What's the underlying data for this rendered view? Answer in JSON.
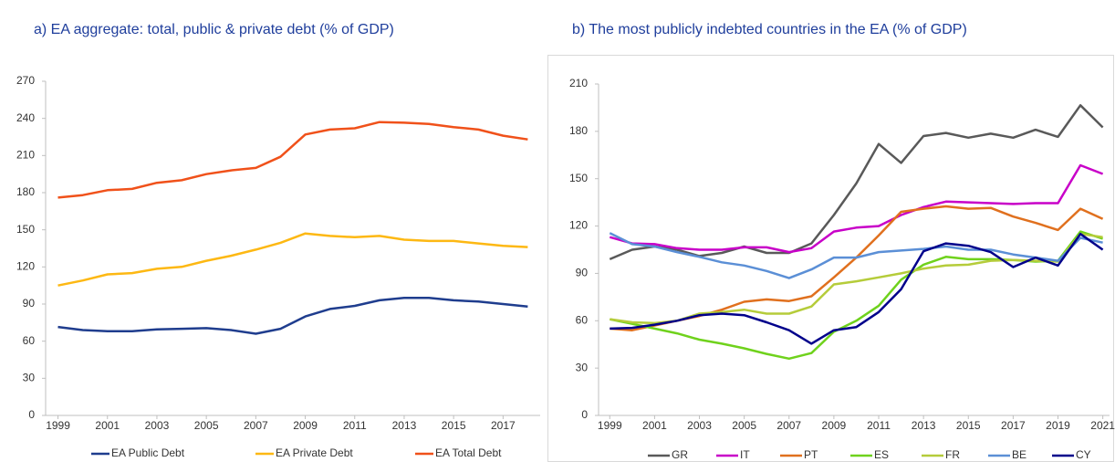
{
  "chart_data": [
    {
      "type": "line",
      "title": "a) EA aggregate: total, public & private debt (% of GDP)",
      "x": [
        1999,
        2000,
        2001,
        2002,
        2003,
        2004,
        2005,
        2006,
        2007,
        2008,
        2009,
        2010,
        2011,
        2012,
        2013,
        2014,
        2015,
        2016,
        2017,
        2018
      ],
      "xlim": [
        1998.5,
        2018.5
      ],
      "xticks": [
        1999,
        2001,
        2003,
        2005,
        2007,
        2009,
        2011,
        2013,
        2015,
        2017
      ],
      "ylim": [
        0,
        270
      ],
      "yticks": [
        0,
        30,
        60,
        90,
        120,
        150,
        180,
        210,
        240,
        270
      ],
      "grid": false,
      "legend": "bottom",
      "series": [
        {
          "name": "EA Public Debt",
          "color": "#1f3d8e",
          "values": [
            71.5,
            69,
            68,
            68,
            69.5,
            70,
            70.5,
            69,
            66,
            70,
            80,
            86,
            88.5,
            93,
            95,
            95,
            93,
            92,
            90,
            88
          ]
        },
        {
          "name": "EA Private Debt",
          "color": "#fdb813",
          "values": [
            105,
            109,
            114,
            115,
            118.5,
            120,
            125,
            129,
            134,
            139.5,
            147,
            145,
            144,
            145,
            142,
            141,
            141,
            139,
            137,
            136
          ]
        },
        {
          "name": "EA Total Debt",
          "color": "#f0511a",
          "values": [
            176,
            178,
            182,
            183,
            188,
            190,
            195,
            198,
            200,
            209,
            227,
            231,
            232,
            237,
            236.5,
            235.5,
            233,
            231,
            226,
            223
          ]
        }
      ]
    },
    {
      "type": "line",
      "title": "b) The most publicly indebted countries in the EA (% of GDP)",
      "x": [
        1999,
        2000,
        2001,
        2002,
        2003,
        2004,
        2005,
        2006,
        2007,
        2008,
        2009,
        2010,
        2011,
        2012,
        2013,
        2014,
        2015,
        2016,
        2017,
        2018,
        2019,
        2020,
        2021
      ],
      "xlim": [
        1998.5,
        2021.3
      ],
      "xticks": [
        1999,
        2001,
        2003,
        2005,
        2007,
        2009,
        2011,
        2013,
        2015,
        2017,
        2019,
        2021
      ],
      "ylim": [
        0,
        210
      ],
      "yticks": [
        0,
        30,
        60,
        90,
        120,
        150,
        180,
        210
      ],
      "grid": false,
      "legend": "bottom",
      "series": [
        {
          "name": "GR",
          "color": "#595959",
          "values": [
            99,
            105,
            107,
            105,
            101,
            103,
            107,
            103,
            103,
            109,
            127,
            147,
            172,
            160,
            177,
            179,
            176,
            178.5,
            176,
            181,
            176.5,
            196.5,
            182.5
          ]
        },
        {
          "name": "IT",
          "color": "#c800c8",
          "values": [
            113,
            109,
            108.5,
            106,
            105,
            105,
            106.5,
            106.5,
            103.5,
            106,
            116.5,
            119,
            120,
            127,
            132,
            135.5,
            135,
            134.5,
            134,
            134.5,
            134.5,
            158.5,
            153
          ]
        },
        {
          "name": "PT",
          "color": "#e0701e",
          "values": [
            55,
            54,
            57,
            60,
            63,
            67,
            72,
            73.5,
            72.5,
            75.5,
            87.5,
            100,
            114,
            129,
            131,
            132.5,
            131,
            131.5,
            126,
            122,
            117.5,
            131,
            124.5
          ]
        },
        {
          "name": "ES",
          "color": "#6fd21c",
          "values": [
            61,
            58,
            55,
            52,
            48,
            45.5,
            42.5,
            39,
            36,
            39.5,
            53,
            60,
            69.5,
            86,
            95.5,
            100.5,
            99,
            99,
            98.5,
            97.5,
            98,
            116.5,
            112
          ]
        },
        {
          "name": "FR",
          "color": "#b5cc3a",
          "values": [
            61,
            59,
            58.5,
            60,
            64.5,
            65.5,
            67,
            64.5,
            64.5,
            69,
            83,
            85,
            87.5,
            90,
            93,
            95,
            95.5,
            98,
            98.5,
            98,
            97.5,
            115,
            113
          ]
        },
        {
          "name": "BE",
          "color": "#5b8fd6",
          "values": [
            115.5,
            108.5,
            107,
            103.5,
            100.5,
            97,
            95,
            91.5,
            87,
            92.5,
            100,
            100,
            103.5,
            104.5,
            105.5,
            107,
            105,
            105,
            102,
            100,
            98,
            112.5,
            109.5
          ]
        },
        {
          "name": "CY",
          "color": "#00008b",
          "values": [
            55,
            55.5,
            57.5,
            60,
            63.5,
            64.5,
            63.5,
            59,
            54,
            45.5,
            54,
            56,
            65.5,
            80,
            104,
            109,
            107.5,
            103.5,
            94,
            100,
            95,
            115,
            105
          ]
        }
      ]
    }
  ]
}
